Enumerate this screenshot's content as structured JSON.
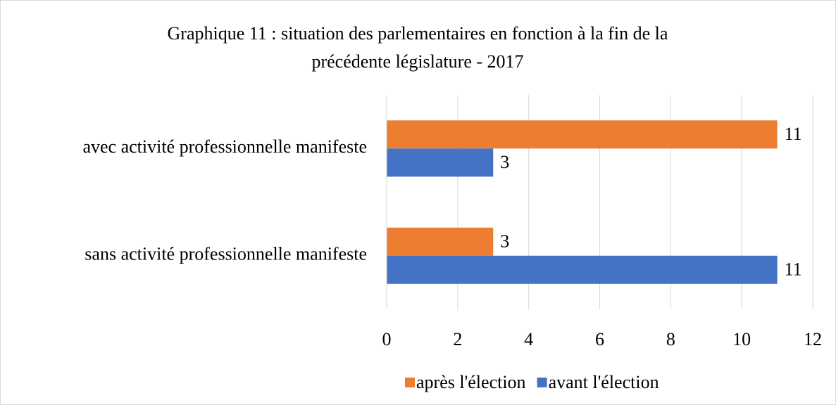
{
  "chart_data": {
    "type": "bar",
    "orientation": "horizontal",
    "title": [
      "Graphique 11 : situation des parlementaires en fonction à la fin de la",
      "précédente législature - 2017"
    ],
    "categories": [
      "avec activité professionnelle manifeste",
      "sans activité professionnelle manifeste"
    ],
    "series": [
      {
        "name": "après l'élection",
        "color": "#ED7D31",
        "values": [
          11,
          3
        ]
      },
      {
        "name": "avant l'élection",
        "color": "#4472C4",
        "values": [
          3,
          11
        ]
      }
    ],
    "xlim": [
      0,
      12
    ],
    "xticks": [
      0,
      2,
      4,
      6,
      8,
      10,
      12
    ],
    "grid": true,
    "legend": "bottom"
  }
}
